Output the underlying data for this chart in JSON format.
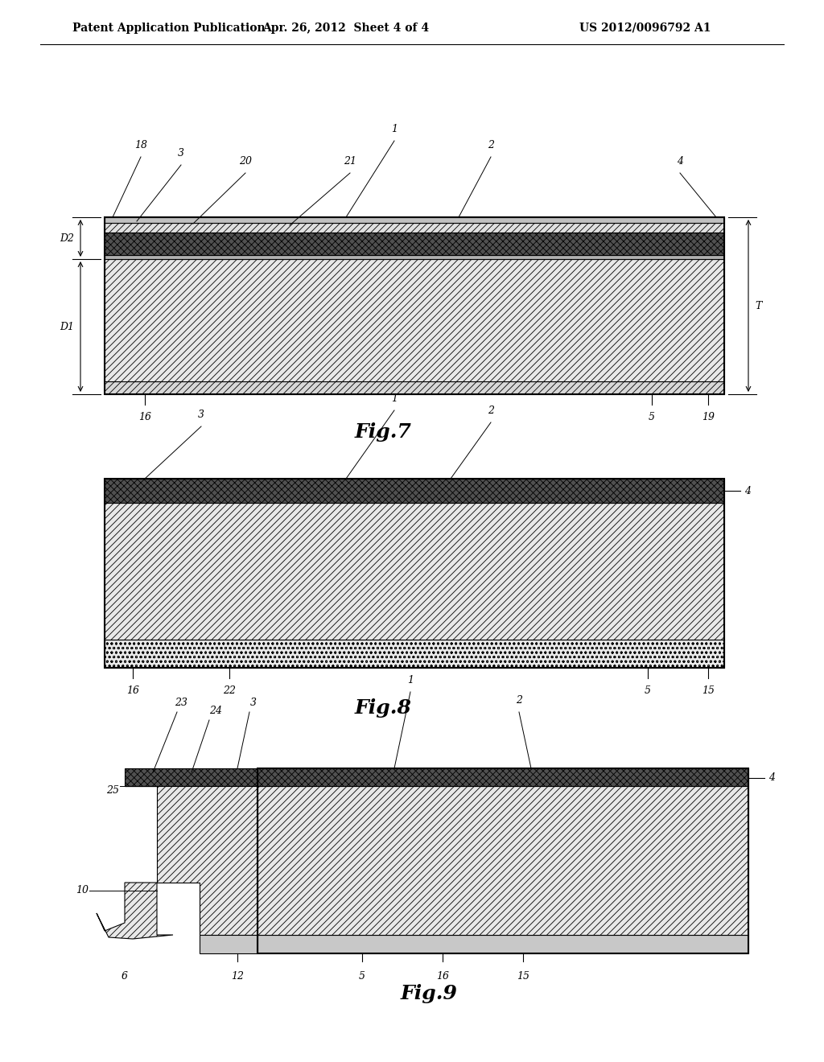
{
  "title_left": "Patent Application Publication",
  "title_mid": "Apr. 26, 2012  Sheet 4 of 4",
  "title_right": "US 2012/0096792 A1",
  "bg_color": "#ffffff"
}
